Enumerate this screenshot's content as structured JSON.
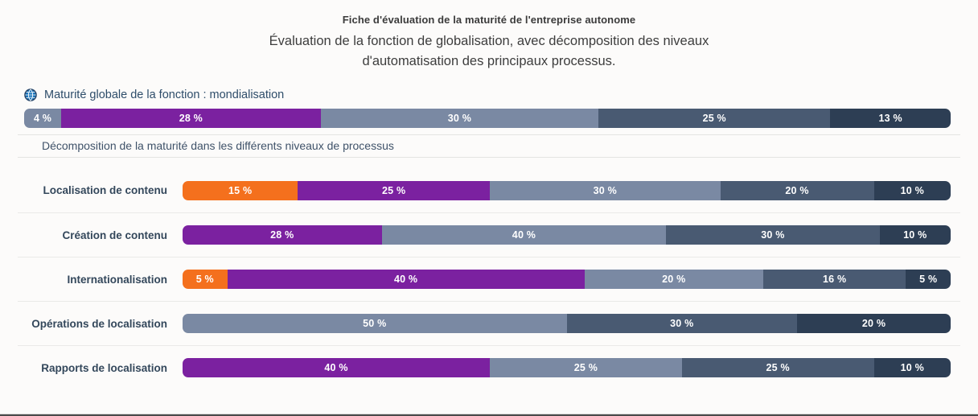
{
  "page": {
    "title": "Fiche d'évaluation de la maturité de l'entreprise autonome",
    "subtitle_line1": "Évaluation de la fonction de globalisation, avec décomposition des niveaux",
    "subtitle_line2": "d'automatisation des principaux processus."
  },
  "overall_section": {
    "icon": "globe-icon",
    "icon_color": "#1b75bb",
    "heading": "Maturité globale de la fonction : mondialisation"
  },
  "decomposition": {
    "heading": "Décomposition de la maturité dans les différents niveaux de processus"
  },
  "palette": {
    "level0_orange": "#f4701d",
    "level1_purple": "#7b21a0",
    "level2_slate_light": "#7a89a3",
    "level3_slate_medium": "#495a72",
    "level4_navy_dark": "#2d3e54"
  },
  "chart_data": {
    "type": "bar",
    "stacked": true,
    "orientation": "horizontal",
    "value_unit": "%",
    "overall_bar": {
      "label": "Maturité globale de la fonction : mondialisation",
      "segments": [
        {
          "label": "4 %",
          "value": 4,
          "color": "level2_slate_light"
        },
        {
          "label": "28 %",
          "value": 28,
          "color": "level1_purple"
        },
        {
          "label": "30 %",
          "value": 30,
          "color": "level2_slate_light"
        },
        {
          "label": "25 %",
          "value": 25,
          "color": "level3_slate_medium"
        },
        {
          "label": "13 %",
          "value": 13,
          "color": "level4_navy_dark"
        }
      ]
    },
    "process_rows": [
      {
        "label": "Localisation de contenu",
        "segments": [
          {
            "label": "15 %",
            "value": 15,
            "color": "level0_orange"
          },
          {
            "label": "25 %",
            "value": 25,
            "color": "level1_purple"
          },
          {
            "label": "30 %",
            "value": 30,
            "color": "level2_slate_light"
          },
          {
            "label": "20 %",
            "value": 20,
            "color": "level3_slate_medium"
          },
          {
            "label": "10 %",
            "value": 10,
            "color": "level4_navy_dark"
          }
        ]
      },
      {
        "label": "Création de contenu",
        "segments": [
          {
            "label": "28 %",
            "value": 28,
            "color": "level1_purple"
          },
          {
            "label": "40 %",
            "value": 40,
            "color": "level2_slate_light"
          },
          {
            "label": "30 %",
            "value": 30,
            "color": "level3_slate_medium"
          },
          {
            "label": "10 %",
            "value": 10,
            "color": "level4_navy_dark"
          }
        ]
      },
      {
        "label": "Internationalisation",
        "segments": [
          {
            "label": "5 %",
            "value": 5,
            "color": "level0_orange"
          },
          {
            "label": "40 %",
            "value": 40,
            "color": "level1_purple"
          },
          {
            "label": "20 %",
            "value": 20,
            "color": "level2_slate_light"
          },
          {
            "label": "16 %",
            "value": 16,
            "color": "level3_slate_medium"
          },
          {
            "label": "5 %",
            "value": 5,
            "color": "level4_navy_dark"
          }
        ]
      },
      {
        "label": "Opérations de localisation",
        "segments": [
          {
            "label": "50 %",
            "value": 50,
            "color": "level2_slate_light"
          },
          {
            "label": "30 %",
            "value": 30,
            "color": "level3_slate_medium"
          },
          {
            "label": "20 %",
            "value": 20,
            "color": "level4_navy_dark"
          }
        ]
      },
      {
        "label": "Rapports de localisation",
        "segments": [
          {
            "label": "40 %",
            "value": 40,
            "color": "level1_purple"
          },
          {
            "label": "25 %",
            "value": 25,
            "color": "level2_slate_light"
          },
          {
            "label": "25 %",
            "value": 25,
            "color": "level3_slate_medium"
          },
          {
            "label": "10 %",
            "value": 10,
            "color": "level4_navy_dark"
          }
        ]
      }
    ]
  }
}
